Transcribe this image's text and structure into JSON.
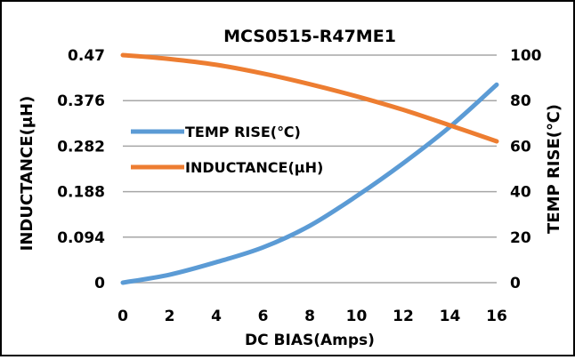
{
  "chart_data": {
    "type": "line",
    "title": "MCS0515-R47ME1",
    "xlabel": "DC  BIAS(Amps)",
    "ylabel_left": "INDUCTANCE(μH)",
    "ylabel_right": "TEMP RISE(℃)",
    "x_ticks": [
      "0",
      "2",
      "4",
      "6",
      "8",
      "10",
      "12",
      "14",
      "16"
    ],
    "y_left_ticks": [
      "0",
      "0.094",
      "0.188",
      "0.282",
      "0.376",
      "0.47"
    ],
    "y_right_ticks": [
      "0",
      "20",
      "40",
      "60",
      "80",
      "100"
    ],
    "xlim": [
      0,
      16
    ],
    "ylim_left": [
      0,
      0.47
    ],
    "ylim_right": [
      0,
      100
    ],
    "grid": "horizontal",
    "legend_position": "center-left",
    "series": [
      {
        "name": "TEMP RISE(℃)",
        "axis": "right",
        "color": "#5b9bd5",
        "x": [
          0,
          2,
          4,
          6,
          8,
          10,
          12,
          14,
          16
        ],
        "y": [
          0,
          3.5,
          9,
          15.5,
          25,
          38,
          52.5,
          68.5,
          87
        ]
      },
      {
        "name": "INDUCTANCE(μH)",
        "axis": "left",
        "color": "#ed7d31",
        "x": [
          0,
          2,
          4,
          6,
          8,
          10,
          12,
          14,
          16
        ],
        "y": [
          0.47,
          0.462,
          0.45,
          0.432,
          0.41,
          0.385,
          0.357,
          0.325,
          0.292
        ]
      }
    ]
  }
}
